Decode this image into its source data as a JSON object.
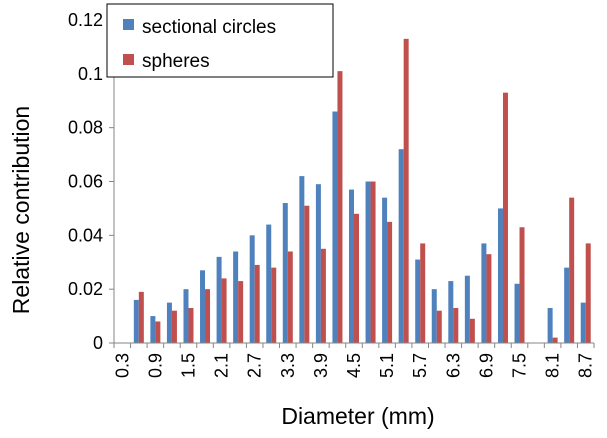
{
  "chart_data": {
    "type": "bar",
    "xlabel": "Diameter (mm)",
    "ylabel": "Relative contribution",
    "ylim": [
      0,
      0.12
    ],
    "yticks": [
      "0",
      "0.02",
      "0.04",
      "0.06",
      "0.08",
      "0.1",
      "0.12"
    ],
    "grid": false,
    "legend_position": "top-left",
    "categories": [
      "0.3",
      "0.6",
      "0.9",
      "1.2",
      "1.5",
      "1.8",
      "2.1",
      "2.4",
      "2.7",
      "3.0",
      "3.3",
      "3.6",
      "3.9",
      "4.2",
      "4.5",
      "4.8",
      "5.1",
      "5.4",
      "5.7",
      "6.0",
      "6.3",
      "6.6",
      "6.9",
      "7.2",
      "7.5",
      "7.8",
      "8.1",
      "8.4",
      "8.7"
    ],
    "x_tick_labels": [
      "0.3",
      "0.9",
      "1.5",
      "2.1",
      "2.7",
      "3.3",
      "3.9",
      "4.5",
      "5.1",
      "5.7",
      "6.3",
      "6.9",
      "7.5",
      "8.1",
      "8.7"
    ],
    "series": [
      {
        "name": "sectional circles",
        "color": "#4F81BD",
        "values": [
          0.0,
          0.016,
          0.01,
          0.015,
          0.02,
          0.027,
          0.032,
          0.034,
          0.04,
          0.044,
          0.052,
          0.062,
          0.059,
          0.086,
          0.057,
          0.06,
          0.054,
          0.072,
          0.031,
          0.02,
          0.023,
          0.025,
          0.037,
          0.05,
          0.022,
          0.0,
          0.013,
          0.028,
          0.015
        ]
      },
      {
        "name": "spheres",
        "color": "#C0504D",
        "values": [
          0.0,
          0.019,
          0.008,
          0.012,
          0.013,
          0.02,
          0.024,
          0.023,
          0.029,
          0.028,
          0.034,
          0.051,
          0.035,
          0.101,
          0.048,
          0.06,
          0.045,
          0.113,
          0.037,
          0.012,
          0.013,
          0.009,
          0.033,
          0.093,
          0.043,
          0.0,
          0.002,
          0.054,
          0.037
        ]
      }
    ]
  }
}
